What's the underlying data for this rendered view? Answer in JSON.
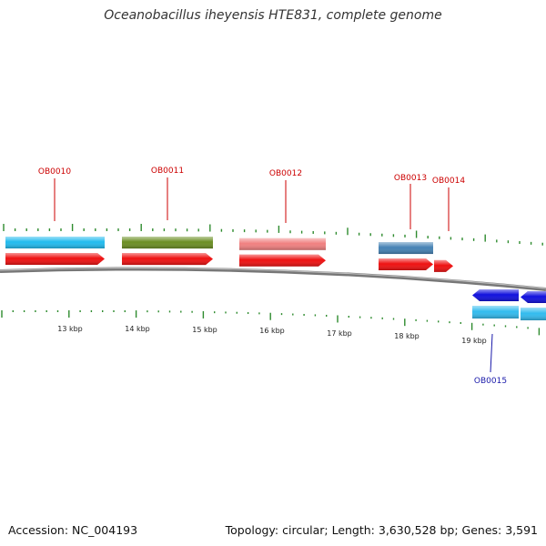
{
  "title": "Oceanobacillus iheyensis HTE831, complete genome",
  "footer": {
    "accession": "Accession: NC_004193",
    "summary": "Topology: circular; Length: 3,630,528 bp; Genes: 3,591"
  },
  "colors": {
    "backbone": "#888888",
    "ticks": "#2e8b2e",
    "forward_arrow": "#ee1111",
    "reverse_arrow": "#1111dd",
    "label_forward": "#cc0000",
    "label_reverse": "#1a1aaa"
  },
  "scale_labels": [
    "13 kbp",
    "14 kbp",
    "15 kbp",
    "16 kbp",
    "17 kbp",
    "18 kbp",
    "19 kbp"
  ],
  "genes": [
    {
      "id": "OB0010",
      "strand": "forward",
      "cog_color": "#22bbee"
    },
    {
      "id": "OB0011",
      "strand": "forward",
      "cog_color": "#6b8e23"
    },
    {
      "id": "OB0012",
      "strand": "forward",
      "cog_color": "#f08080"
    },
    {
      "id": "OB0013",
      "strand": "forward",
      "cog_color": "#4682b4"
    },
    {
      "id": "OB0014",
      "strand": "forward",
      "cog_color": ""
    },
    {
      "id": "OB0015",
      "strand": "reverse",
      "cog_color": "#33bbee"
    }
  ]
}
